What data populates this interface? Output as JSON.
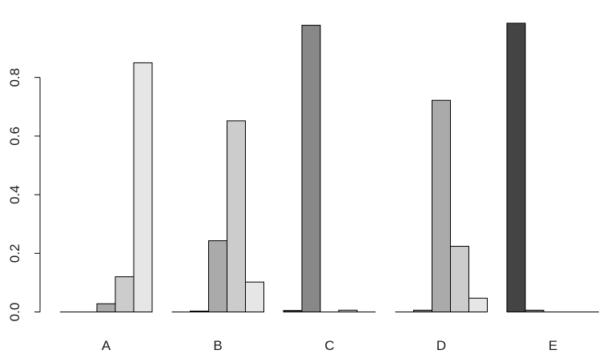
{
  "chart_data": {
    "type": "bar",
    "layout": "grouped",
    "categories": [
      "A",
      "B",
      "C",
      "D",
      "E"
    ],
    "series": [
      {
        "color": "#444444",
        "values": [
          0,
          0,
          0.005,
          0,
          0.985
        ]
      },
      {
        "color": "#888888",
        "values": [
          0,
          0.003,
          0.978,
          0.006,
          0.006
        ]
      },
      {
        "color": "#aaaaaa",
        "values": [
          0.028,
          0.243,
          0,
          0.722,
          0
        ]
      },
      {
        "color": "#cccccc",
        "values": [
          0.12,
          0.652,
          0.006,
          0.224,
          0
        ]
      },
      {
        "color": "#e6e6e6",
        "values": [
          0.85,
          0.102,
          0,
          0.047,
          0
        ]
      }
    ],
    "ylim": [
      0,
      1
    ],
    "y_ticks": [
      0.0,
      0.2,
      0.4,
      0.6,
      0.8
    ],
    "y_tick_labels": [
      "0.0",
      "0.2",
      "0.4",
      "0.6",
      "0.8"
    ],
    "grid": false,
    "legend": "none",
    "title": "",
    "xlabel": "",
    "ylabel": ""
  }
}
